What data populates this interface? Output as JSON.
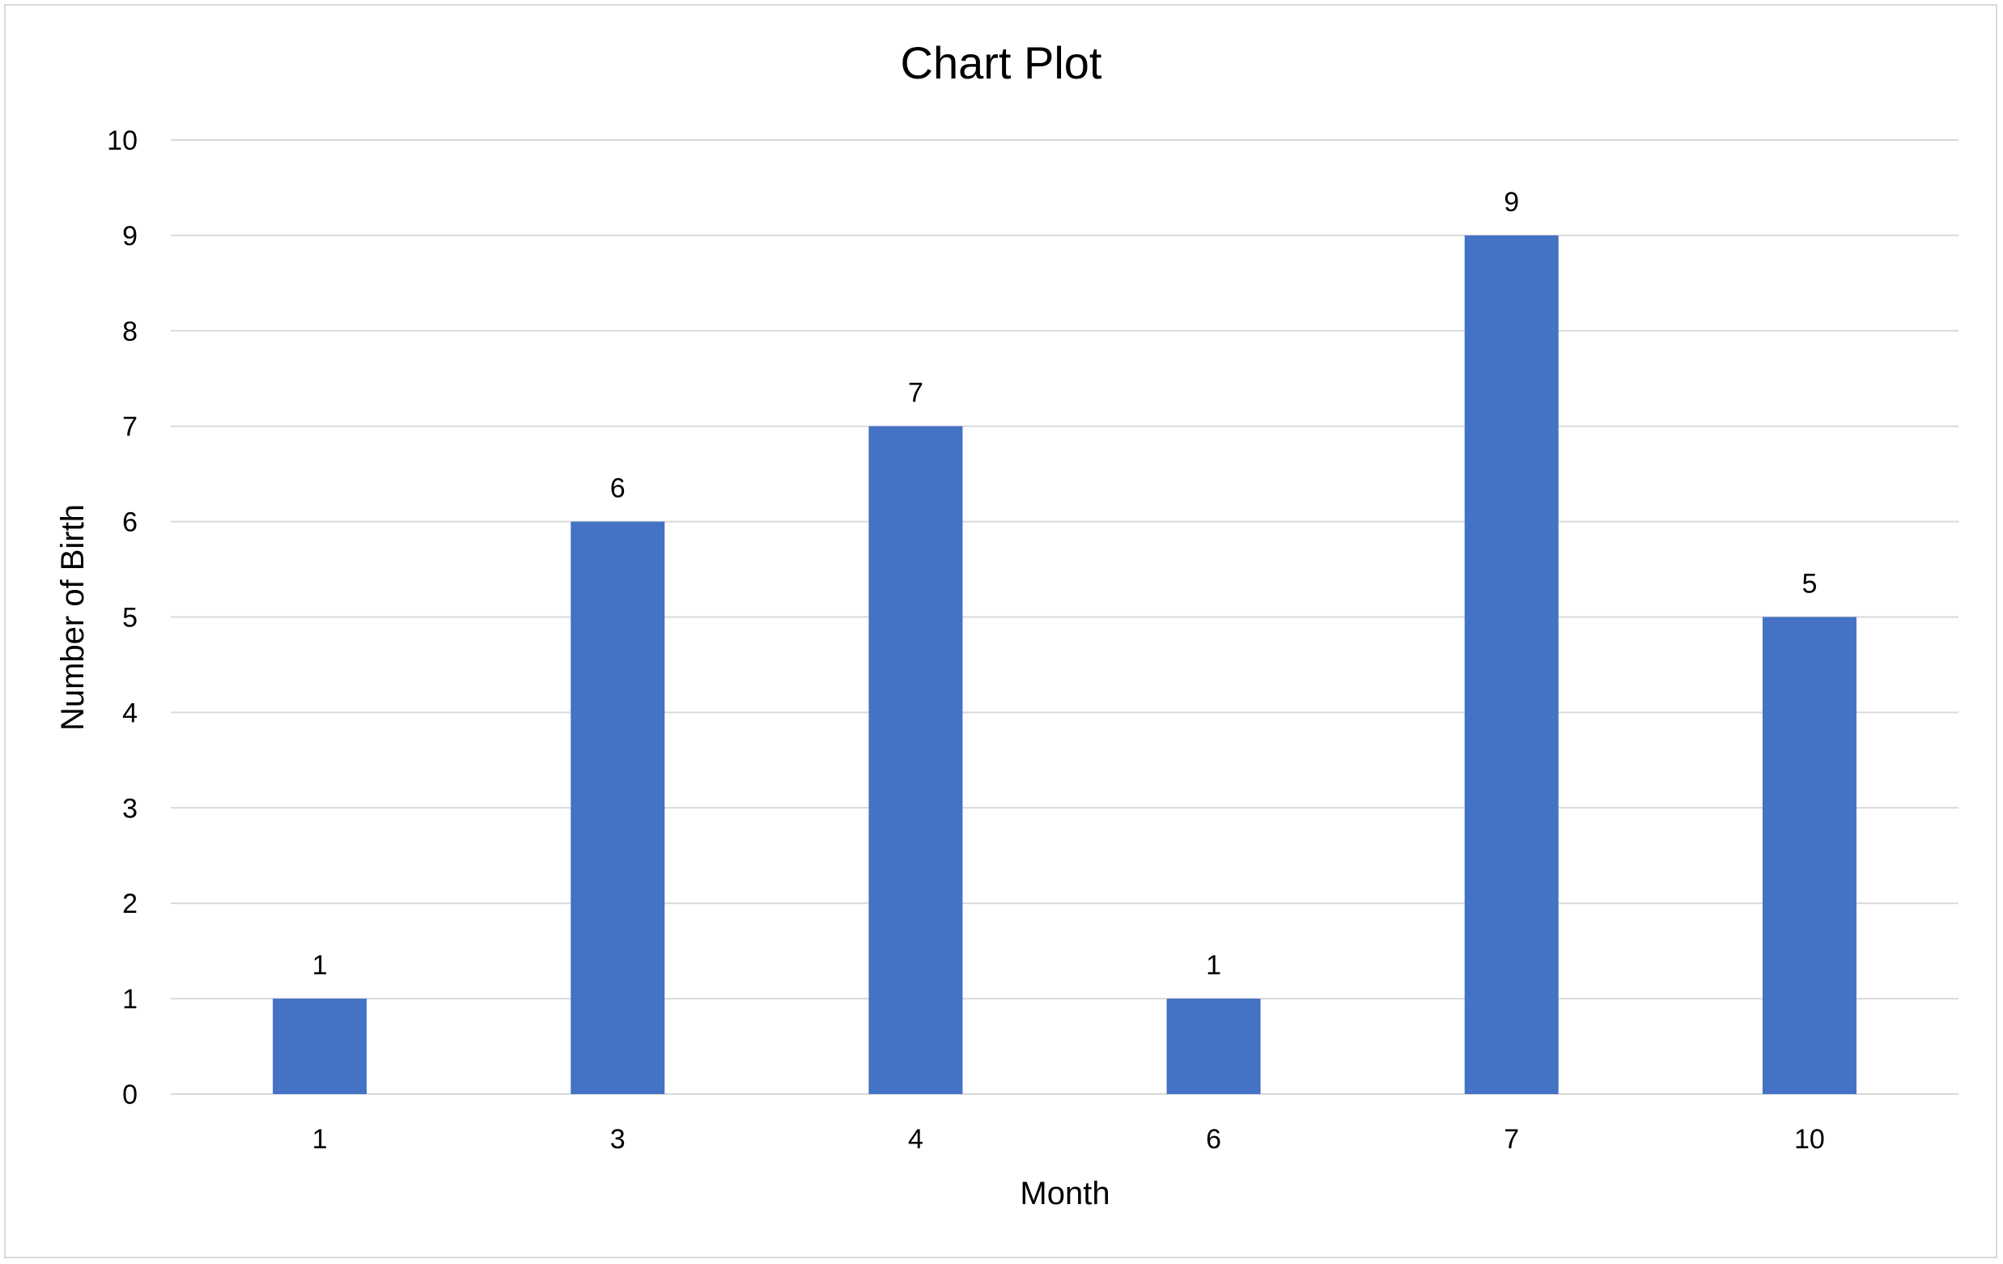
{
  "chart_data": {
    "type": "bar",
    "title": "Chart Plot",
    "xlabel": "Month",
    "ylabel": "Number of Birth",
    "categories": [
      "1",
      "3",
      "4",
      "6",
      "7",
      "10"
    ],
    "values": [
      1,
      6,
      7,
      1,
      9,
      5
    ],
    "ylim": [
      0,
      10
    ],
    "yticks": [
      0,
      1,
      2,
      3,
      4,
      5,
      6,
      7,
      8,
      9,
      10
    ],
    "grid": true,
    "legend": "none",
    "data_labels": true,
    "colors": {
      "bar": "#4472C4",
      "grid": "#d9d9d9"
    }
  }
}
